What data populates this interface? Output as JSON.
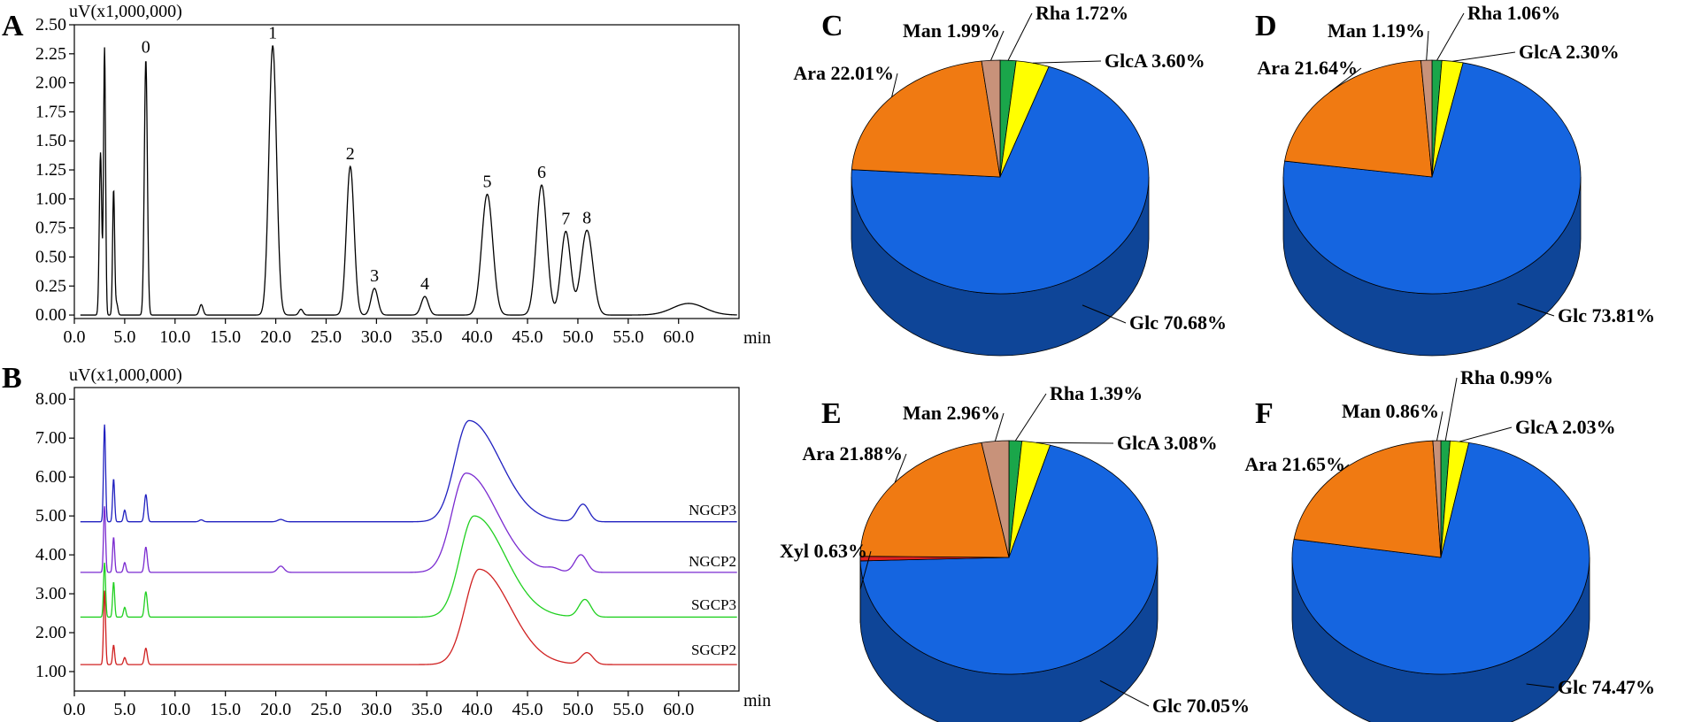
{
  "colors": {
    "Rha": "#1aa64a",
    "GlcA": "#ffff00",
    "Glc": "#1565e0",
    "Ara": "#f07a12",
    "Man": "#c8927a",
    "Xyl": "#e02020",
    "NGCP3": "#2020c0",
    "NGCP2": "#7a2ad0",
    "SGCP3": "#20d020",
    "SGCP2": "#d02020"
  },
  "chart_data": [
    {
      "panel": "A",
      "type": "line",
      "unit_label": "uV(x1,000,000)",
      "xlabel": "min",
      "xlim": [
        0,
        66
      ],
      "ylim": [
        -0.03,
        2.5
      ],
      "xticks": [
        "0.0",
        "5.0",
        "10.0",
        "15.0",
        "20.0",
        "25.0",
        "30.0",
        "35.0",
        "40.0",
        "45.0",
        "50.0",
        "55.0",
        "60.0"
      ],
      "yticks": [
        "0.00",
        "0.25",
        "0.50",
        "0.75",
        "1.00",
        "1.25",
        "1.50",
        "1.75",
        "2.00",
        "2.25",
        "2.50"
      ],
      "baseline": 0.0,
      "peaks": [
        {
          "label": "",
          "x": 2.6,
          "h": 1.4,
          "w": 0.12
        },
        {
          "label": "",
          "x": 3.0,
          "h": 2.3,
          "w": 0.1
        },
        {
          "label": "",
          "x": 3.9,
          "h": 1.08,
          "w": 0.1
        },
        {
          "label": "",
          "x": 4.2,
          "h": 0.1,
          "w": 0.12
        },
        {
          "label": "0",
          "x": 7.1,
          "h": 2.2,
          "w": 0.15
        },
        {
          "label": "",
          "x": 12.6,
          "h": 0.09,
          "w": 0.18
        },
        {
          "label": "1",
          "x": 19.7,
          "h": 2.32,
          "w": 0.38
        },
        {
          "label": "",
          "x": 22.5,
          "h": 0.05,
          "w": 0.2
        },
        {
          "label": "2",
          "x": 27.4,
          "h": 1.28,
          "w": 0.38
        },
        {
          "label": "3",
          "x": 29.8,
          "h": 0.23,
          "w": 0.34
        },
        {
          "label": "4",
          "x": 34.8,
          "h": 0.16,
          "w": 0.36
        },
        {
          "label": "5",
          "x": 41.0,
          "h": 1.04,
          "w": 0.55
        },
        {
          "label": "6",
          "x": 46.4,
          "h": 1.12,
          "w": 0.52
        },
        {
          "label": "7",
          "x": 48.8,
          "h": 0.72,
          "w": 0.48
        },
        {
          "label": "8",
          "x": 50.9,
          "h": 0.73,
          "w": 0.58
        },
        {
          "label": "",
          "x": 61.0,
          "h": 0.1,
          "w": 1.6
        }
      ]
    },
    {
      "panel": "B",
      "type": "line",
      "unit_label": "uV(x1,000,000)",
      "xlabel": "min",
      "xlim": [
        0,
        66
      ],
      "ylim": [
        0.5,
        8.3
      ],
      "xticks": [
        "0.0",
        "5.0",
        "10.0",
        "15.0",
        "20.0",
        "25.0",
        "30.0",
        "35.0",
        "40.0",
        "45.0",
        "50.0",
        "55.0",
        "60.0"
      ],
      "yticks": [
        "1.00",
        "2.00",
        "3.00",
        "4.00",
        "5.00",
        "6.00",
        "7.00",
        "8.00"
      ],
      "series": [
        {
          "name": "NGCP3",
          "baseline": 4.85,
          "peaks": [
            {
              "x": 3.0,
              "h": 2.5,
              "w": 0.1
            },
            {
              "x": 3.9,
              "h": 1.1,
              "w": 0.1
            },
            {
              "x": 5.0,
              "h": 0.3,
              "w": 0.12
            },
            {
              "x": 7.1,
              "h": 0.7,
              "w": 0.14
            },
            {
              "x": 12.6,
              "h": 0.05,
              "w": 0.2
            },
            {
              "x": 20.5,
              "h": 0.06,
              "w": 0.3
            },
            {
              "x": 39.2,
              "h": 2.6,
              "w": 1.4,
              "skew": 2.2
            },
            {
              "x": 50.5,
              "h": 0.45,
              "w": 0.6
            }
          ]
        },
        {
          "name": "NGCP2",
          "baseline": 3.55,
          "peaks": [
            {
              "x": 3.0,
              "h": 1.7,
              "w": 0.1
            },
            {
              "x": 3.9,
              "h": 0.9,
              "w": 0.1
            },
            {
              "x": 5.0,
              "h": 0.25,
              "w": 0.12
            },
            {
              "x": 7.1,
              "h": 0.65,
              "w": 0.14
            },
            {
              "x": 20.5,
              "h": 0.16,
              "w": 0.32
            },
            {
              "x": 38.9,
              "h": 2.55,
              "w": 1.4,
              "skew": 2.2
            },
            {
              "x": 47.5,
              "h": 0.08,
              "w": 0.6
            },
            {
              "x": 50.3,
              "h": 0.45,
              "w": 0.6
            }
          ]
        },
        {
          "name": "SGCP3",
          "baseline": 2.4,
          "peaks": [
            {
              "x": 3.0,
              "h": 1.4,
              "w": 0.1
            },
            {
              "x": 3.9,
              "h": 0.9,
              "w": 0.1
            },
            {
              "x": 5.0,
              "h": 0.25,
              "w": 0.12
            },
            {
              "x": 7.1,
              "h": 0.65,
              "w": 0.14
            },
            {
              "x": 39.7,
              "h": 2.6,
              "w": 1.4,
              "skew": 2.2
            },
            {
              "x": 50.7,
              "h": 0.45,
              "w": 0.6
            }
          ]
        },
        {
          "name": "SGCP2",
          "baseline": 1.18,
          "peaks": [
            {
              "x": 3.0,
              "h": 1.9,
              "w": 0.1
            },
            {
              "x": 3.9,
              "h": 0.5,
              "w": 0.1
            },
            {
              "x": 5.0,
              "h": 0.18,
              "w": 0.12
            },
            {
              "x": 7.1,
              "h": 0.42,
              "w": 0.14
            },
            {
              "x": 40.2,
              "h": 2.45,
              "w": 1.4,
              "skew": 2.2
            },
            {
              "x": 50.9,
              "h": 0.3,
              "w": 0.6
            }
          ]
        }
      ]
    },
    {
      "panel": "C",
      "type": "pie",
      "slices": [
        {
          "name": "Rha",
          "label": "Rha 1.72%",
          "value": 1.72
        },
        {
          "name": "GlcA",
          "label": "GlcA 3.60%",
          "value": 3.6
        },
        {
          "name": "Glc",
          "label": "Glc 70.68%",
          "value": 70.68
        },
        {
          "name": "Ara",
          "label": "Ara 22.01%",
          "value": 22.01
        },
        {
          "name": "Man",
          "label": "Man 1.99%",
          "value": 1.99
        }
      ]
    },
    {
      "panel": "D",
      "type": "pie",
      "slices": [
        {
          "name": "Rha",
          "label": "Rha 1.06%",
          "value": 1.06
        },
        {
          "name": "GlcA",
          "label": "GlcA 2.30%",
          "value": 2.3
        },
        {
          "name": "Glc",
          "label": "Glc 73.81%",
          "value": 73.81
        },
        {
          "name": "Ara",
          "label": "Ara 21.64%",
          "value": 21.64
        },
        {
          "name": "Man",
          "label": "Man 1.19%",
          "value": 1.19
        }
      ]
    },
    {
      "panel": "E",
      "type": "pie",
      "slices": [
        {
          "name": "Rha",
          "label": "Rha 1.39%",
          "value": 1.39
        },
        {
          "name": "GlcA",
          "label": "GlcA 3.08%",
          "value": 3.08
        },
        {
          "name": "Glc",
          "label": "Glc 70.05%",
          "value": 70.05
        },
        {
          "name": "Xyl",
          "label": "Xyl 0.63%",
          "value": 0.63
        },
        {
          "name": "Ara",
          "label": "Ara 21.88%",
          "value": 21.88
        },
        {
          "name": "Man",
          "label": "Man 2.96%",
          "value": 2.96
        }
      ]
    },
    {
      "panel": "F",
      "type": "pie",
      "slices": [
        {
          "name": "Rha",
          "label": "Rha 0.99%",
          "value": 0.99
        },
        {
          "name": "GlcA",
          "label": "GlcA 2.03%",
          "value": 2.03
        },
        {
          "name": "Glc",
          "label": "Glc 74.47%",
          "value": 74.47
        },
        {
          "name": "Ara",
          "label": "Ara 21.65%",
          "value": 21.65
        },
        {
          "name": "Man",
          "label": "Man 0.86%",
          "value": 0.86
        }
      ]
    }
  ]
}
